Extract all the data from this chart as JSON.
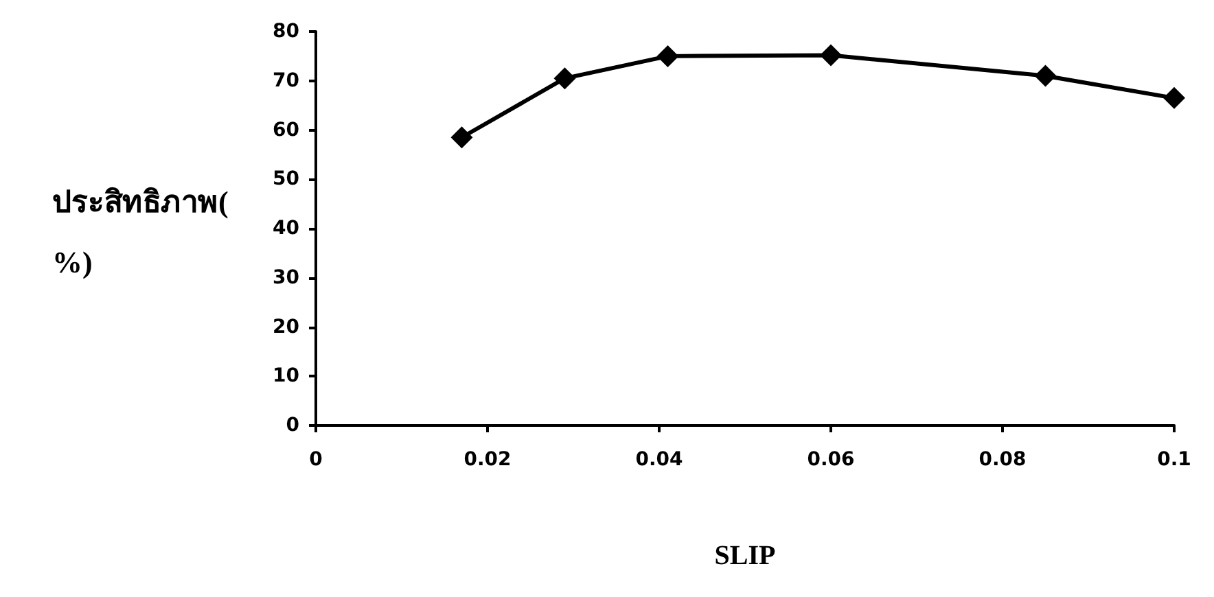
{
  "chart_data": {
    "type": "line",
    "xlabel": "SLIP",
    "ylabel": "ประสิทธิภาพ(%)",
    "x": [
      0.017,
      0.029,
      0.041,
      0.06,
      0.085,
      0.1
    ],
    "series": [
      {
        "color": "#000000",
        "values": [
          58.5,
          70.5,
          75,
          75.2,
          71,
          66.5
        ]
      }
    ],
    "xlim": [
      0,
      0.1
    ],
    "xticks": [
      0,
      0.02,
      0.04,
      0.06,
      0.08,
      0.1
    ],
    "ylim": [
      0,
      80
    ],
    "yticks": [
      0,
      10,
      20,
      30,
      40,
      50,
      60,
      70,
      80
    ],
    "grid": false,
    "marker": "diamond",
    "line_style": "solid"
  }
}
